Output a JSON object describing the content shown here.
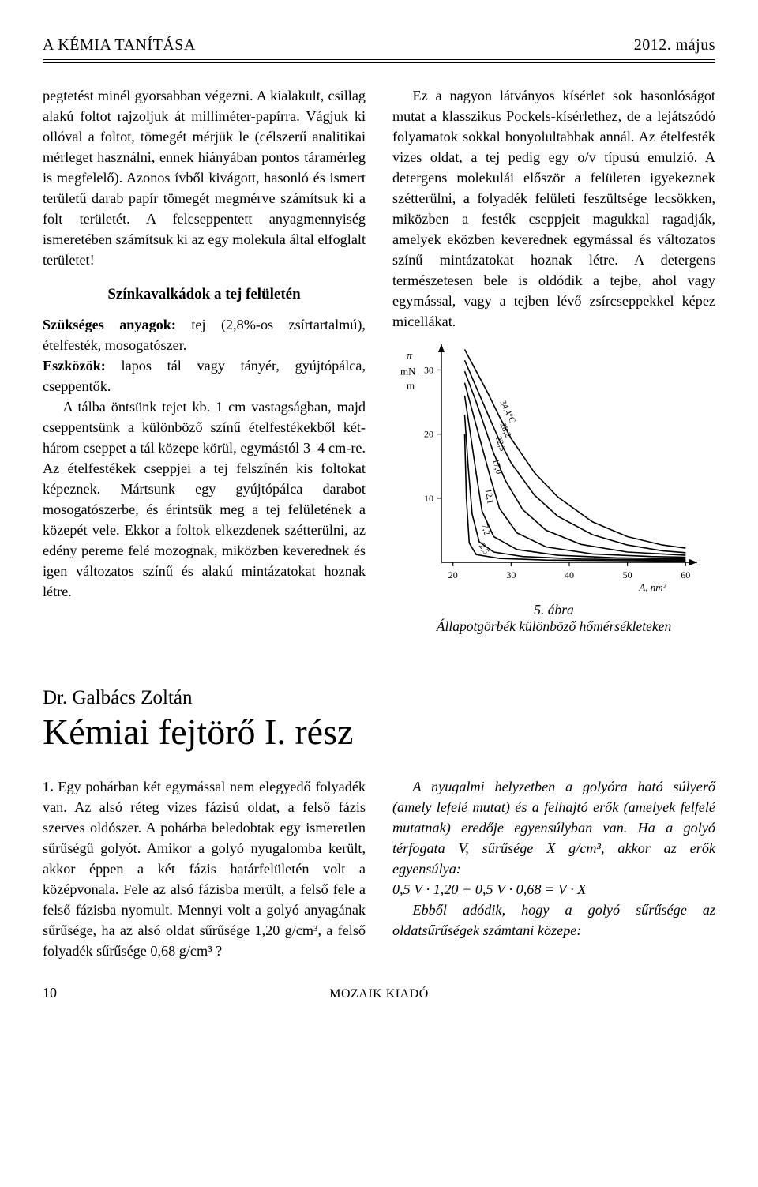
{
  "header": {
    "left": "A KÉMIA TANÍTÁSA",
    "right": "2012. május"
  },
  "left_column": {
    "p1": "pegtetést minél gyorsabban végezni. A kialakult, csillag alakú foltot rajzoljuk át milliméter-papírra. Vágjuk ki ollóval a foltot, tömegét mérjük le (célszerű analitikai mérleget használni, ennek hiányában pontos táramérleg is megfelelő). Azonos ívből kivágott, hasonló és ismert területű darab papír tömegét megmérve számítsuk ki a folt területét. A felcseppentett anyagmennyiség ismeretében számítsuk ki az egy molekula által elfoglalt területet!",
    "sub_heading": "Színkavalkádok a tej felületén",
    "p2a_label": "Szükséges anyagok:",
    "p2a_rest": " tej (2,8%-os zsírtartalmú), ételfesték, mosogatószer.",
    "p2b_label": "Eszközök:",
    "p2b_rest": " lapos tál vagy tányér, gyújtópálca, cseppentők.",
    "p3": "A tálba öntsünk tejet kb. 1 cm vastagságban, majd cseppentsünk a különböző színű ételfestékekből két-három cseppet a tál közepe körül, egymástól 3–4 cm-re. Az ételfestékek cseppjei a tej felszínén kis foltokat képeznek. Mártsunk egy gyújtópálca darabot mosogatószerbe, és érintsük meg a tej felületének a közepét vele. Ekkor a foltok elkezdenek szétterülni, az edény pereme felé mozognak, miközben keverednek és igen változatos színű és alakú mintázatokat hoznak létre."
  },
  "right_column": {
    "p1": "Ez a nagyon látványos kísérlet sok hasonlóságot mutat a klasszikus Pockels-kísérlethez, de a lejátszódó folyamatok sokkal bonyolultabbak annál. Az ételfesték vizes oldat, a tej pedig egy o/v típusú emulzió. A detergens molekulái először a felületen igyekeznek szétterülni, a folyadék felületi feszültsége lecsökken, miközben a festék cseppjeit magukkal ragadják, amelyek eközben keverednek egymással és változatos színű mintázatokat hoznak létre. A detergens természetesen bele is oldódik a tejbe, ahol vagy egymással, vagy a tejben lévő zsírcseppekkel képez micellákat."
  },
  "figure": {
    "type": "line",
    "y_label_html": "π\\nmN\\n—\\nm",
    "x_label": "A, nm²",
    "x_ticks": [
      20,
      30,
      40,
      50,
      60
    ],
    "y_ticks": [
      10,
      20,
      30
    ],
    "xlim": [
      18,
      62
    ],
    "ylim": [
      0,
      34
    ],
    "axis_color": "#000000",
    "label_fontsize": 13,
    "tick_fontsize": 12,
    "background_color": "#ffffff",
    "line_color": "#000000",
    "line_width": 1.6,
    "curves": [
      {
        "label": "34,4°C",
        "points": [
          [
            22,
            33.2
          ],
          [
            24,
            29.8
          ],
          [
            26,
            26.4
          ],
          [
            28,
            22.7
          ],
          [
            30,
            19.3
          ],
          [
            34,
            14.0
          ],
          [
            38,
            10.2
          ],
          [
            44,
            6.3
          ],
          [
            50,
            4.0
          ],
          [
            56,
            2.7
          ],
          [
            60,
            2.2
          ]
        ]
      },
      {
        "label": "28,2",
        "points": [
          [
            22,
            31.5
          ],
          [
            24,
            27.3
          ],
          [
            26,
            23.1
          ],
          [
            28,
            19.0
          ],
          [
            30,
            15.5
          ],
          [
            34,
            10.5
          ],
          [
            38,
            7.2
          ],
          [
            44,
            4.3
          ],
          [
            50,
            2.7
          ],
          [
            56,
            1.8
          ],
          [
            60,
            1.5
          ]
        ]
      },
      {
        "label": "22,3",
        "points": [
          [
            22,
            29.8
          ],
          [
            24,
            25.0
          ],
          [
            25.5,
            21.0
          ],
          [
            27,
            17.0
          ],
          [
            29,
            12.8
          ],
          [
            32,
            8.2
          ],
          [
            36,
            5.0
          ],
          [
            42,
            2.8
          ],
          [
            50,
            1.6
          ],
          [
            60,
            1.1
          ]
        ]
      },
      {
        "label": "17,0",
        "points": [
          [
            22,
            28.0
          ],
          [
            23.5,
            23.0
          ],
          [
            25,
            18.0
          ],
          [
            26.5,
            13.0
          ],
          [
            28,
            8.4
          ],
          [
            31,
            4.6
          ],
          [
            36,
            2.4
          ],
          [
            44,
            1.3
          ],
          [
            54,
            0.9
          ],
          [
            60,
            0.8
          ]
        ]
      },
      {
        "label": "12,1",
        "points": [
          [
            22,
            26.0
          ],
          [
            23,
            20.0
          ],
          [
            24,
            13.8
          ],
          [
            25,
            8.0
          ],
          [
            27,
            4.0
          ],
          [
            31,
            2.0
          ],
          [
            38,
            1.1
          ],
          [
            48,
            0.7
          ],
          [
            60,
            0.5
          ]
        ]
      },
      {
        "label": "7,2",
        "points": [
          [
            22,
            23.0
          ],
          [
            22.6,
            15.0
          ],
          [
            23.3,
            7.5
          ],
          [
            24.5,
            3.2
          ],
          [
            27,
            1.6
          ],
          [
            32,
            0.9
          ],
          [
            42,
            0.5
          ],
          [
            60,
            0.35
          ]
        ]
      },
      {
        "label": "2,5",
        "points": [
          [
            22,
            20.0
          ],
          [
            22.3,
            10.0
          ],
          [
            22.8,
            3.0
          ],
          [
            24,
            1.2
          ],
          [
            28,
            0.6
          ],
          [
            36,
            0.35
          ],
          [
            50,
            0.25
          ],
          [
            60,
            0.2
          ]
        ]
      }
    ],
    "caption_num": "5. ábra",
    "caption_text": "Állapotgörbék különböző hőmérsékleteken"
  },
  "article2": {
    "author": "Dr. Galbács Zoltán",
    "title": "Kémiai fejtörő I. rész",
    "left_p_lead": "1.",
    "left_p": " Egy pohárban két egymással nem elegyedő folyadék van. Az alsó réteg vizes fázisú oldat, a felső fázis szerves oldószer. A pohárba beledobtak egy ismeretlen sűrűségű golyót. Amikor a golyó nyugalomba került, akkor éppen a két fázis határfelületén volt a középvonala. Fele az alsó fázisba merült, a felső fele a felső fázisba nyomult. Mennyi volt a golyó anyagának sűrűsége, ha az alsó oldat sűrűsége 1,20 g/cm³, a felső folyadék sűrűsége 0,68 g/cm³ ?",
    "right_p1": "A nyugalmi helyzetben a golyóra ható súlyerő (amely lefelé mutat) és a felhajtó erők (amelyek felfelé mutatnak) eredője egyensúlyban van. Ha a golyó térfogata V, sűrűsége X g/cm³, akkor az erők egyensúlya:",
    "equation": "0,5 V · 1,20 + 0,5 V · 0,68 = V · X",
    "right_p2": "Ebből adódik, hogy a golyó sűrűsége az oldatsűrűségek számtani közepe:"
  },
  "footer": {
    "page": "10",
    "publisher": "MOZAIK KIADÓ"
  }
}
